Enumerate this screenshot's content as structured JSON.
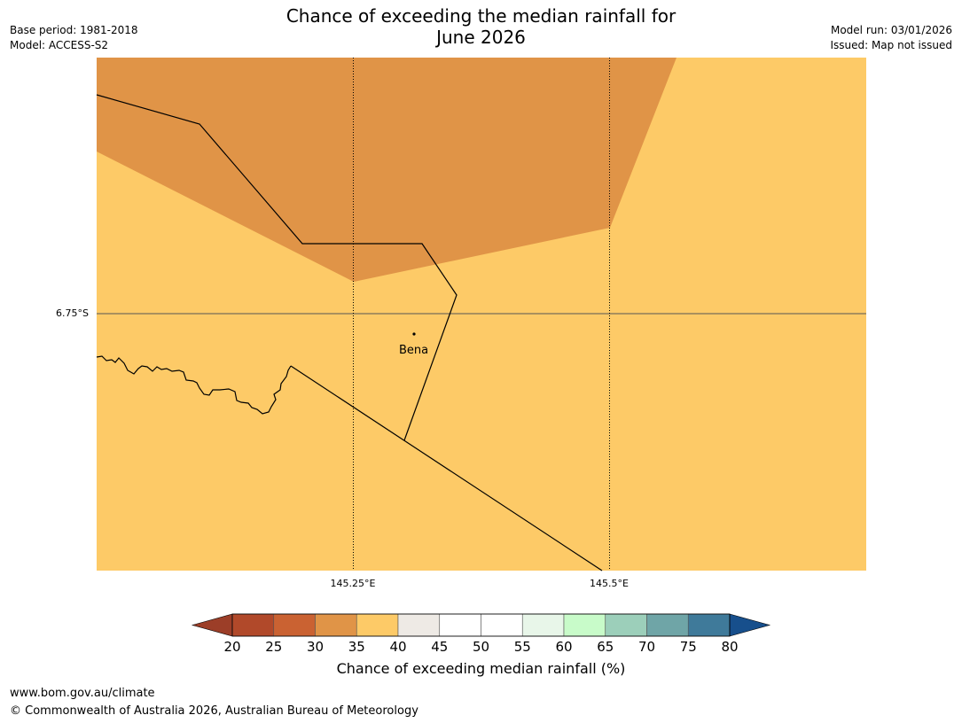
{
  "title_line1": "Chance of exceeding the median rainfall for",
  "title_line2": "June 2026",
  "base_period": "Base period: 1981-2018",
  "model": "Model: ACCESS-S2",
  "model_run": "Model run: 03/01/2026",
  "issued": "Issued: Map not issued",
  "map": {
    "lat_label": "6.75°S",
    "lon_labels": [
      "145.25°E",
      "145.5°E"
    ],
    "place_name": "Bena",
    "colors": {
      "band_35_40": "#fdca67",
      "band_30_35": "#e09447"
    }
  },
  "colorbar": {
    "title": "Chance of exceeding median rainfall (%)",
    "ticks": [
      "20",
      "25",
      "30",
      "35",
      "40",
      "45",
      "50",
      "55",
      "60",
      "65",
      "70",
      "75",
      "80"
    ],
    "colors": [
      "#9c3e28",
      "#b1492a",
      "#ca6232",
      "#e09447",
      "#fdca67",
      "#eeeae5",
      "#ffffff",
      "#ffffff",
      "#e8f6e9",
      "#c8fbc9",
      "#9ccfba",
      "#6fa5a7",
      "#3f7a9a",
      "#174f8c"
    ]
  },
  "footer": {
    "url": "www.bom.gov.au/climate",
    "copyright": "© Commonwealth of Australia 2026, Australian Bureau of Meteorology"
  }
}
